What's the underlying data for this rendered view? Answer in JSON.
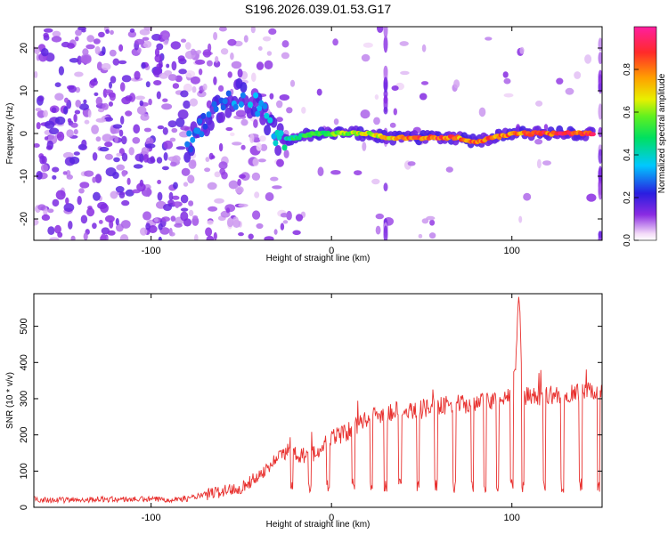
{
  "title": "S196.2026.039.01.53.G17",
  "chart_data": [
    {
      "type": "heatmap",
      "panel": "top",
      "xlabel": "Height of straight line (km)",
      "ylabel": "Frequency (Hz)",
      "xlim": [
        -165,
        150
      ],
      "ylim": [
        -25,
        25
      ],
      "xticks": [
        -100,
        0,
        100
      ],
      "yticks": [
        20,
        10,
        0,
        -10,
        -20
      ],
      "colorbar": {
        "label": "Normalized spectral amplitude",
        "range": [
          0.0,
          1.0
        ],
        "ticks": [
          "0.0",
          "0.2",
          "0.4",
          "0.6",
          "0.8"
        ]
      },
      "ridge": {
        "description_points_x": [
          -80,
          -70,
          -60,
          -50,
          -40,
          -30,
          -20,
          -10,
          0,
          10,
          20,
          30,
          40,
          50,
          60,
          70,
          80,
          90,
          100,
          110,
          120,
          130,
          140,
          145
        ],
        "frequency": [
          -3,
          3,
          7,
          9,
          6,
          -1,
          -1,
          0,
          0,
          0,
          0,
          -1,
          -1,
          -1,
          -1,
          -1,
          -2,
          -1,
          0,
          0,
          0,
          0,
          0,
          0
        ],
        "amplitude": [
          0.3,
          0.3,
          0.3,
          0.35,
          0.35,
          0.4,
          0.5,
          0.55,
          0.6,
          0.65,
          0.7,
          0.75,
          0.85,
          0.9,
          0.9,
          0.85,
          0.9,
          0.85,
          0.85,
          0.9,
          0.92,
          0.92,
          0.95,
          0.95
        ]
      }
    },
    {
      "type": "line",
      "panel": "bottom",
      "xlabel": "Height of straight line (km)",
      "ylabel": "SNR (10 * v/v)",
      "xlim": [
        -165,
        150
      ],
      "ylim": [
        0,
        590
      ],
      "xticks": [
        -100,
        0,
        100
      ],
      "yticks": [
        0,
        100,
        200,
        300,
        400,
        500
      ],
      "color": "#e8312f",
      "series": [
        {
          "name": "SNR",
          "x": [
            -165,
            -150,
            -130,
            -110,
            -90,
            -80,
            -70,
            -65,
            -60,
            -50,
            -45,
            -40,
            -35,
            -30,
            -25,
            -22,
            -20,
            -15,
            -10,
            -5,
            0,
            5,
            10,
            15,
            20,
            25,
            30,
            35,
            40,
            50,
            60,
            70,
            80,
            90,
            95,
            100,
            102,
            104,
            106,
            110,
            120,
            130,
            140,
            145,
            150
          ],
          "y": [
            22,
            20,
            22,
            22,
            22,
            24,
            35,
            40,
            45,
            55,
            70,
            90,
            110,
            140,
            150,
            200,
            150,
            140,
            150,
            160,
            190,
            200,
            210,
            230,
            250,
            255,
            260,
            265,
            270,
            270,
            280,
            285,
            285,
            295,
            300,
            310,
            400,
            590,
            310,
            305,
            310,
            310,
            320,
            320,
            320
          ]
        }
      ],
      "dropouts_x": [
        -22,
        -12,
        -2,
        12,
        22,
        30,
        38,
        48,
        58,
        68,
        78,
        85,
        92,
        100,
        106,
        118,
        128,
        138,
        148
      ]
    }
  ]
}
